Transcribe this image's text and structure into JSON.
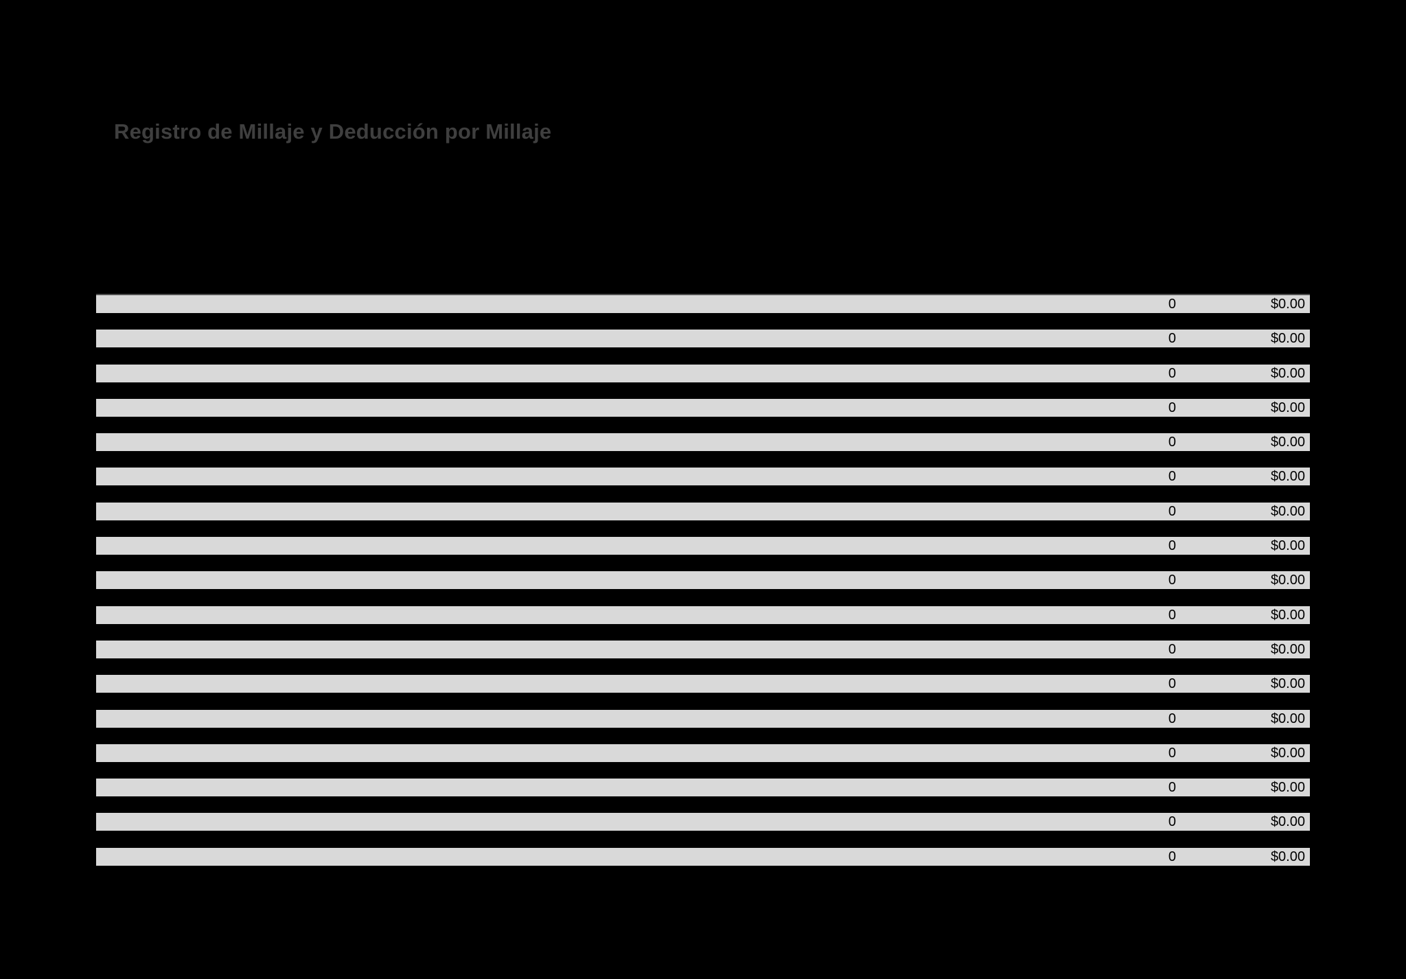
{
  "page": {
    "background_color": "#000000",
    "row_fill_color": "#d9d9d9",
    "row_border_color": "#4f4f4f",
    "title_color": "#3f3f3f",
    "text_color": "#000000"
  },
  "header": {
    "title": "Registro de Millaje y Deducción por Millaje"
  },
  "table": {
    "rows": [
      {
        "millas": "0",
        "deduccion": "$0.00"
      },
      {
        "millas": "0",
        "deduccion": "$0.00"
      },
      {
        "millas": "0",
        "deduccion": "$0.00"
      },
      {
        "millas": "0",
        "deduccion": "$0.00"
      },
      {
        "millas": "0",
        "deduccion": "$0.00"
      },
      {
        "millas": "0",
        "deduccion": "$0.00"
      },
      {
        "millas": "0",
        "deduccion": "$0.00"
      },
      {
        "millas": "0",
        "deduccion": "$0.00"
      },
      {
        "millas": "0",
        "deduccion": "$0.00"
      },
      {
        "millas": "0",
        "deduccion": "$0.00"
      },
      {
        "millas": "0",
        "deduccion": "$0.00"
      },
      {
        "millas": "0",
        "deduccion": "$0.00"
      },
      {
        "millas": "0",
        "deduccion": "$0.00"
      },
      {
        "millas": "0",
        "deduccion": "$0.00"
      },
      {
        "millas": "0",
        "deduccion": "$0.00"
      },
      {
        "millas": "0",
        "deduccion": "$0.00"
      },
      {
        "millas": "0",
        "deduccion": "$0.00"
      }
    ]
  }
}
